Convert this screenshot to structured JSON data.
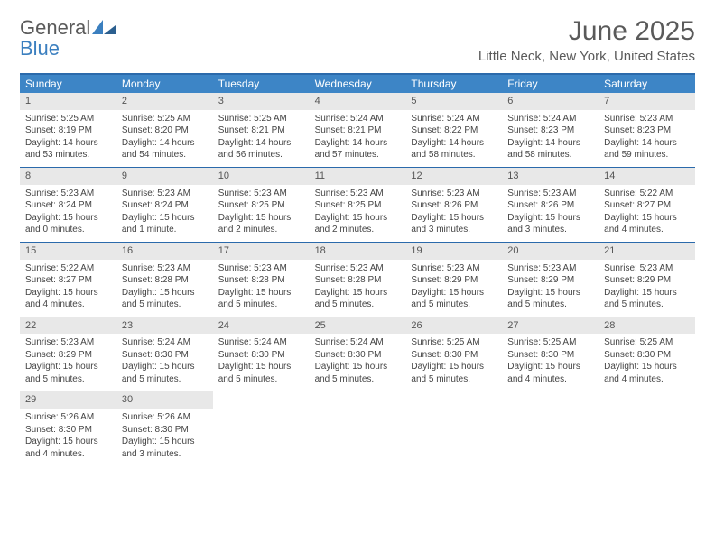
{
  "logo": {
    "top": "General",
    "bottom": "Blue"
  },
  "title": "June 2025",
  "location": "Little Neck, New York, United States",
  "colors": {
    "header_bar": "#3d85c6",
    "rule": "#2b6aab",
    "daynum_bg": "#e8e8e8",
    "text": "#444444",
    "title_text": "#5a5a5a",
    "logo_blue": "#3b7fbf"
  },
  "weekdays": [
    "Sunday",
    "Monday",
    "Tuesday",
    "Wednesday",
    "Thursday",
    "Friday",
    "Saturday"
  ],
  "weeks": [
    [
      {
        "n": "1",
        "sr": "5:25 AM",
        "ss": "8:19 PM",
        "dl": "14 hours and 53 minutes."
      },
      {
        "n": "2",
        "sr": "5:25 AM",
        "ss": "8:20 PM",
        "dl": "14 hours and 54 minutes."
      },
      {
        "n": "3",
        "sr": "5:25 AM",
        "ss": "8:21 PM",
        "dl": "14 hours and 56 minutes."
      },
      {
        "n": "4",
        "sr": "5:24 AM",
        "ss": "8:21 PM",
        "dl": "14 hours and 57 minutes."
      },
      {
        "n": "5",
        "sr": "5:24 AM",
        "ss": "8:22 PM",
        "dl": "14 hours and 58 minutes."
      },
      {
        "n": "6",
        "sr": "5:24 AM",
        "ss": "8:23 PM",
        "dl": "14 hours and 58 minutes."
      },
      {
        "n": "7",
        "sr": "5:23 AM",
        "ss": "8:23 PM",
        "dl": "14 hours and 59 minutes."
      }
    ],
    [
      {
        "n": "8",
        "sr": "5:23 AM",
        "ss": "8:24 PM",
        "dl": "15 hours and 0 minutes."
      },
      {
        "n": "9",
        "sr": "5:23 AM",
        "ss": "8:24 PM",
        "dl": "15 hours and 1 minute."
      },
      {
        "n": "10",
        "sr": "5:23 AM",
        "ss": "8:25 PM",
        "dl": "15 hours and 2 minutes."
      },
      {
        "n": "11",
        "sr": "5:23 AM",
        "ss": "8:25 PM",
        "dl": "15 hours and 2 minutes."
      },
      {
        "n": "12",
        "sr": "5:23 AM",
        "ss": "8:26 PM",
        "dl": "15 hours and 3 minutes."
      },
      {
        "n": "13",
        "sr": "5:23 AM",
        "ss": "8:26 PM",
        "dl": "15 hours and 3 minutes."
      },
      {
        "n": "14",
        "sr": "5:22 AM",
        "ss": "8:27 PM",
        "dl": "15 hours and 4 minutes."
      }
    ],
    [
      {
        "n": "15",
        "sr": "5:22 AM",
        "ss": "8:27 PM",
        "dl": "15 hours and 4 minutes."
      },
      {
        "n": "16",
        "sr": "5:23 AM",
        "ss": "8:28 PM",
        "dl": "15 hours and 5 minutes."
      },
      {
        "n": "17",
        "sr": "5:23 AM",
        "ss": "8:28 PM",
        "dl": "15 hours and 5 minutes."
      },
      {
        "n": "18",
        "sr": "5:23 AM",
        "ss": "8:28 PM",
        "dl": "15 hours and 5 minutes."
      },
      {
        "n": "19",
        "sr": "5:23 AM",
        "ss": "8:29 PM",
        "dl": "15 hours and 5 minutes."
      },
      {
        "n": "20",
        "sr": "5:23 AM",
        "ss": "8:29 PM",
        "dl": "15 hours and 5 minutes."
      },
      {
        "n": "21",
        "sr": "5:23 AM",
        "ss": "8:29 PM",
        "dl": "15 hours and 5 minutes."
      }
    ],
    [
      {
        "n": "22",
        "sr": "5:23 AM",
        "ss": "8:29 PM",
        "dl": "15 hours and 5 minutes."
      },
      {
        "n": "23",
        "sr": "5:24 AM",
        "ss": "8:30 PM",
        "dl": "15 hours and 5 minutes."
      },
      {
        "n": "24",
        "sr": "5:24 AM",
        "ss": "8:30 PM",
        "dl": "15 hours and 5 minutes."
      },
      {
        "n": "25",
        "sr": "5:24 AM",
        "ss": "8:30 PM",
        "dl": "15 hours and 5 minutes."
      },
      {
        "n": "26",
        "sr": "5:25 AM",
        "ss": "8:30 PM",
        "dl": "15 hours and 5 minutes."
      },
      {
        "n": "27",
        "sr": "5:25 AM",
        "ss": "8:30 PM",
        "dl": "15 hours and 4 minutes."
      },
      {
        "n": "28",
        "sr": "5:25 AM",
        "ss": "8:30 PM",
        "dl": "15 hours and 4 minutes."
      }
    ],
    [
      {
        "n": "29",
        "sr": "5:26 AM",
        "ss": "8:30 PM",
        "dl": "15 hours and 4 minutes."
      },
      {
        "n": "30",
        "sr": "5:26 AM",
        "ss": "8:30 PM",
        "dl": "15 hours and 3 minutes."
      },
      null,
      null,
      null,
      null,
      null
    ]
  ],
  "labels": {
    "sunrise": "Sunrise: ",
    "sunset": "Sunset: ",
    "daylight": "Daylight: "
  }
}
